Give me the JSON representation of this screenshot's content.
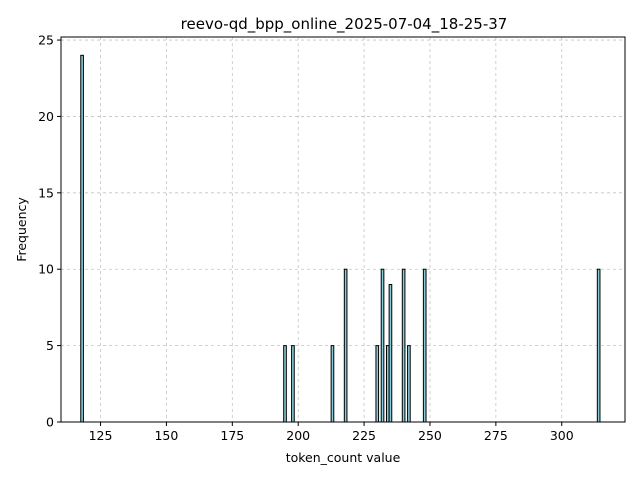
{
  "chart_data": {
    "type": "bar",
    "title": "reevo-qd_bpp_online_2025-07-04_18-25-37",
    "xlabel": "token_count value",
    "ylabel": "Frequency",
    "xlim": [
      110,
      324
    ],
    "ylim": [
      0,
      25.2
    ],
    "grid": true,
    "x_ticks": [
      125,
      150,
      175,
      200,
      225,
      250,
      275,
      300
    ],
    "y_ticks": [
      0,
      5,
      10,
      15,
      20,
      25
    ],
    "bin_width": 1,
    "x": [
      118,
      195,
      198,
      213,
      218,
      230,
      232,
      234,
      235,
      240,
      242,
      248,
      314
    ],
    "values": [
      24,
      5,
      5,
      5,
      10,
      5,
      10,
      5,
      9,
      10,
      5,
      10,
      10
    ],
    "colors": {
      "bar_fill": "#87cbd9",
      "bar_edge": "#000000"
    }
  }
}
